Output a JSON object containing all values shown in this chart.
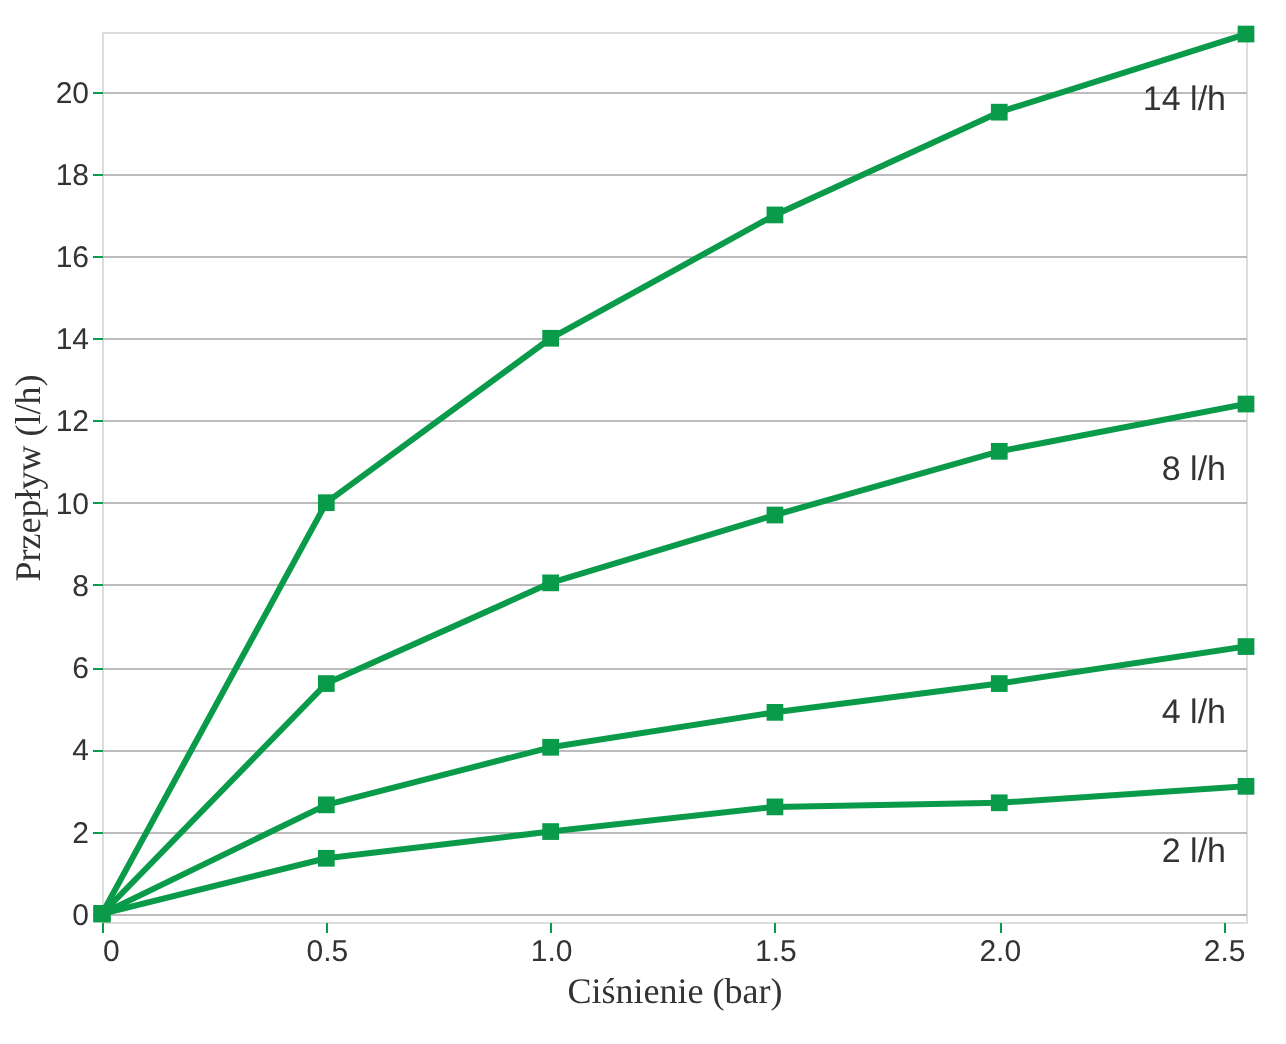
{
  "chart_data": {
    "type": "line",
    "xlabel": "Ciśnienie (bar)",
    "ylabel": "Przepływ (l/h)",
    "x": [
      0,
      0.5,
      1.0,
      1.5,
      2.0,
      2.55
    ],
    "series": [
      {
        "name": "14 l/h",
        "color": "#0a9b4a",
        "values": [
          0,
          10,
          14,
          17,
          19.5,
          21.4
        ]
      },
      {
        "name": "8 l/h",
        "color": "#0a9b4a",
        "values": [
          0,
          5.6,
          8.05,
          9.7,
          11.25,
          12.4
        ]
      },
      {
        "name": "4 l/h",
        "color": "#0a9b4a",
        "values": [
          0,
          2.65,
          4.05,
          4.9,
          5.6,
          6.5
        ]
      },
      {
        "name": "2 l/h",
        "color": "#0a9b4a",
        "values": [
          0,
          1.35,
          2.0,
          2.6,
          2.7,
          3.1
        ]
      }
    ],
    "xlim": [
      0,
      2.55
    ],
    "xticks": [
      0,
      {
        "value": 0.5,
        "label": "0.5"
      },
      {
        "value": 1,
        "label": "1.0"
      },
      {
        "value": 1.5,
        "label": "1.5"
      },
      {
        "value": 2,
        "label": "2.0"
      },
      {
        "value": 2.5,
        "label": "2.5"
      }
    ],
    "ylim": [
      -0.2,
      21.45
    ],
    "yticks": [
      0,
      2,
      4,
      6,
      8,
      10,
      12,
      14,
      16,
      18,
      20
    ],
    "grid": "y",
    "legend": false,
    "marker": "square",
    "line_style": "solid"
  }
}
